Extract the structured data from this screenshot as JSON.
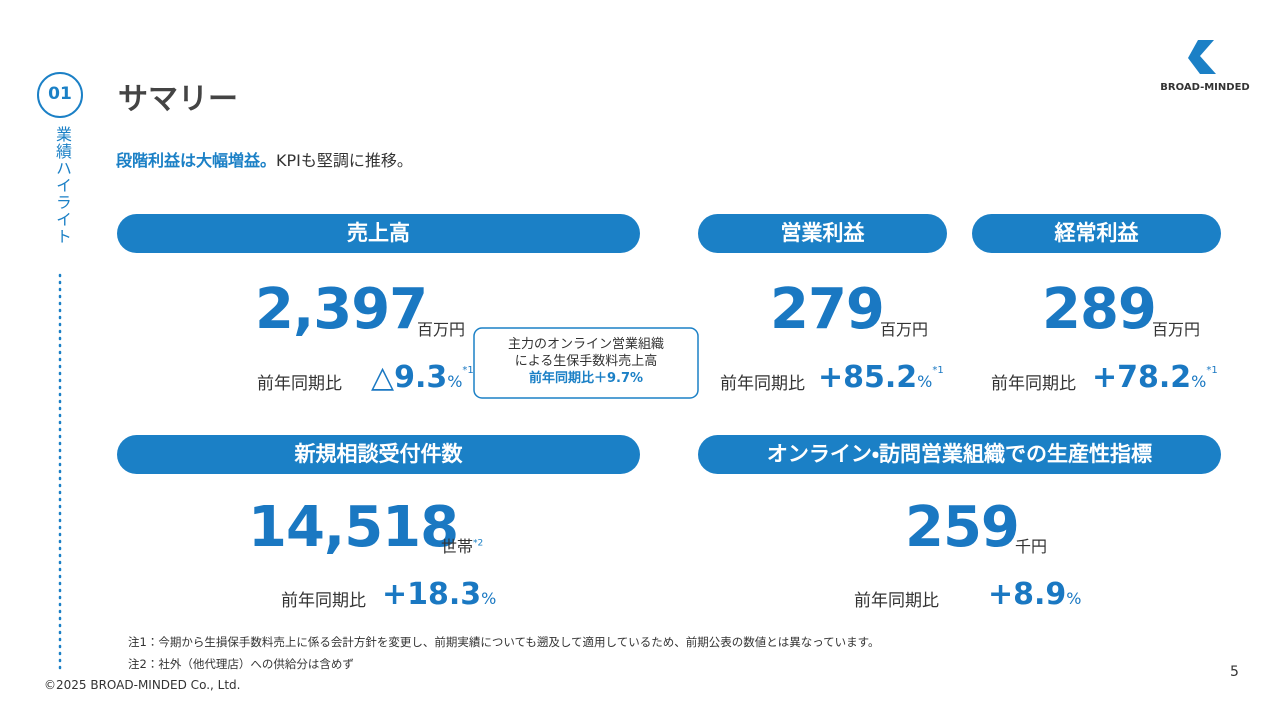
{
  "section": {
    "number": "01",
    "label": "業績ハイライト"
  },
  "title": "サマリー",
  "lead": {
    "emphasis": "段階利益は大幅増益。",
    "rest": "KPIも堅調に推移。"
  },
  "logo": "BROAD-MINDED",
  "kpis": [
    {
      "label": "売上高",
      "value": "2,397",
      "unit": "百万円",
      "compare_label": "前年同期比",
      "change": "△9.3",
      "change_unit": "%",
      "note_ref": "*1"
    },
    {
      "label": "営業利益",
      "value": "279",
      "unit": "百万円",
      "compare_label": "前年同期比",
      "change": "+85.2",
      "change_unit": "%",
      "note_ref": "*1"
    },
    {
      "label": "経常利益",
      "value": "289",
      "unit": "百万円",
      "compare_label": "前年同期比",
      "change": "+78.2",
      "change_unit": "%",
      "note_ref": "*1"
    },
    {
      "label": "新規相談受付件数",
      "value": "14,518",
      "unit": "世帯",
      "unit_note_ref": "*2",
      "compare_label": "前年同期比",
      "change": "+18.3",
      "change_unit": "%"
    },
    {
      "label": "オンライン・訪問営業組織での生産性指標",
      "value": "259",
      "unit": "千円",
      "compare_label": "前年同期比",
      "change": "+8.9",
      "change_unit": "%"
    }
  ],
  "callout": {
    "lines": [
      "主力のオンライン営業組織",
      "による生保手数料売上高"
    ],
    "emphasis": "前年同期比＋9.7%"
  },
  "notes": [
    "注1：今期から生損保手数料売上に係る会計方針を変更し、前期実績についても遡及して適用しているため、前期公表の数値とは異なっています。",
    "注2：社外（他代理店）への供給分は含めず"
  ],
  "copyright": "©2025 BROAD-MINDED Co., Ltd.",
  "page": 5
}
